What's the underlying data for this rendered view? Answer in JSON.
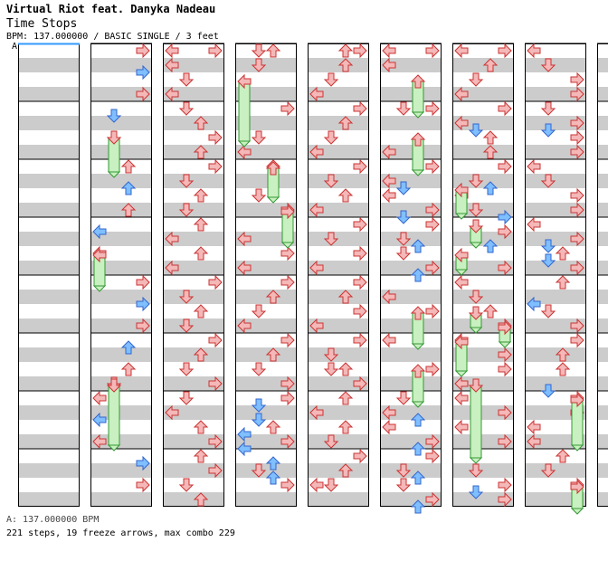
{
  "song": {
    "title": "Virtual Riot feat. Danyka Nadeau",
    "subtitle": "Time Stops",
    "info": "BPM: 137.000000 / BASIC SINGLE / 3 feet"
  },
  "chart": {
    "bpm_marker": "A",
    "columns": 9,
    "measures_per_column": 8,
    "lanes": [
      "left",
      "down",
      "up",
      "right"
    ],
    "colors": {
      "stripe": "#cccccc",
      "red_arrow": "#f4b8b8",
      "red_arrow_edge": "#cc3333",
      "blue_arrow": "#7fbfff",
      "blue_arrow_edge": "#3366cc",
      "freeze_body": "#c8f0c0",
      "freeze_edge": "#339933",
      "bpm_line": "#3399ff"
    },
    "arrow_icons": {
      "left": "left-arrow-icon",
      "down": "down-arrow-icon",
      "up": "up-arrow-icon",
      "right": "right-arrow-icon"
    }
  },
  "footer": {
    "bpm_line": "A: 137.000000 BPM",
    "stats": "221 steps, 19 freeze arrows, max combo 229"
  }
}
